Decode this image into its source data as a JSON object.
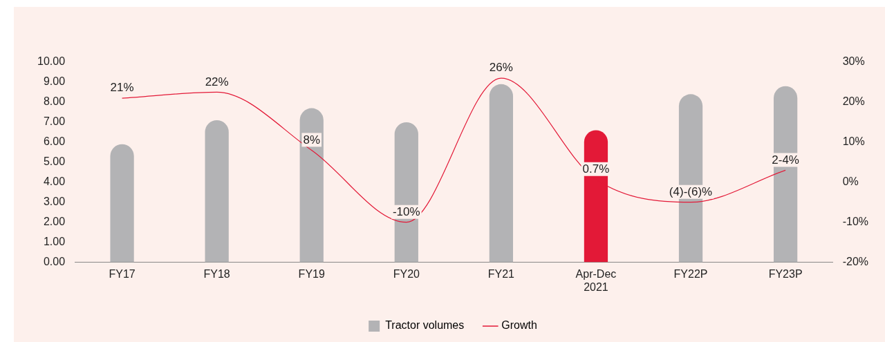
{
  "chart_data": {
    "type": "bar",
    "categories": [
      "FY17",
      "FY18",
      "FY19",
      "FY20",
      "FY21",
      "Apr-Dec 2021",
      "FY22P",
      "FY23P"
    ],
    "series": [
      {
        "name": "Tractor volumes",
        "colors": [
          "#b3b3b5",
          "#b3b3b5",
          "#b3b3b5",
          "#b3b3b5",
          "#b3b3b5",
          "#e31937",
          "#b3b3b5",
          "#b3b3b5"
        ],
        "values": [
          5.9,
          7.1,
          7.7,
          7.0,
          8.9,
          6.6,
          8.4,
          8.8
        ]
      },
      {
        "name": "Growth",
        "type": "line",
        "axis": "y2",
        "color": "#e31937",
        "values": [
          21,
          22.5,
          8,
          -10,
          26,
          0.7,
          -5,
          3
        ],
        "value_labels": [
          "21%",
          "22%",
          "8%",
          "-10%",
          "26%",
          "0.7%",
          null,
          null
        ]
      }
    ],
    "annotations": [
      "(4)-(6)%",
      "2-4%"
    ],
    "ylim": [
      0,
      10
    ],
    "yticks": [
      {
        "value": 0,
        "label": "0.00"
      },
      {
        "value": 1,
        "label": "1.00"
      },
      {
        "value": 2,
        "label": "2.00"
      },
      {
        "value": 3,
        "label": "3.00"
      },
      {
        "value": 4,
        "label": "4.00"
      },
      {
        "value": 5,
        "label": "5.00"
      },
      {
        "value": 6,
        "label": "6.00"
      },
      {
        "value": 7,
        "label": "7.00"
      },
      {
        "value": 8,
        "label": "8.00"
      },
      {
        "value": 9,
        "label": "9.00"
      },
      {
        "value": 10,
        "label": "10.00"
      }
    ],
    "y2lim": [
      -20,
      30
    ],
    "y2ticks": [
      {
        "value": -20,
        "label": "-20%"
      },
      {
        "value": -10,
        "label": "-10%"
      },
      {
        "value": 0,
        "label": "0%"
      },
      {
        "value": 10,
        "label": "10%"
      },
      {
        "value": 20,
        "label": "20%"
      },
      {
        "value": 30,
        "label": "30%"
      }
    ],
    "grid": false,
    "legend": "bottom",
    "marker": "none",
    "line_style": "solid"
  }
}
